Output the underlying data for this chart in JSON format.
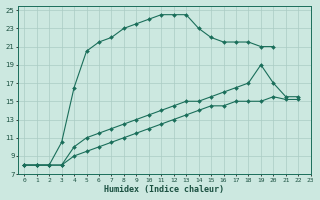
{
  "xlabel": "Humidex (Indice chaleur)",
  "bg_color": "#cce8e0",
  "grid_color": "#aaccc4",
  "line_color": "#1a6e5a",
  "xlim": [
    -0.5,
    23
  ],
  "ylim": [
    7,
    25.5
  ],
  "xticks": [
    0,
    1,
    2,
    3,
    4,
    5,
    6,
    7,
    8,
    9,
    10,
    11,
    12,
    13,
    14,
    15,
    16,
    17,
    18,
    19,
    20,
    21,
    22,
    23
  ],
  "yticks": [
    7,
    9,
    11,
    13,
    15,
    17,
    19,
    21,
    23,
    25
  ],
  "series1_x": [
    0,
    1,
    2,
    3,
    4,
    5,
    6,
    7,
    8,
    9,
    10,
    11,
    12,
    13,
    14,
    15,
    16,
    17,
    18,
    19,
    20
  ],
  "series1_y": [
    8,
    8,
    8,
    10.5,
    16.5,
    20.5,
    21.5,
    22,
    23,
    23.5,
    24,
    24.5,
    24.5,
    24.5,
    23,
    22,
    21.5,
    21.5,
    21.5,
    21,
    21
  ],
  "series2_x": [
    0,
    1,
    2,
    3,
    4,
    5,
    6,
    7,
    8,
    9,
    10,
    11,
    12,
    13,
    14,
    15,
    16,
    17,
    18,
    19,
    20,
    21,
    22
  ],
  "series2_y": [
    8,
    8,
    8,
    8,
    10,
    11,
    11.5,
    12,
    12.5,
    13,
    13.5,
    14,
    14.5,
    15,
    15,
    15.5,
    16,
    16.5,
    17,
    19,
    17,
    15.5,
    15.5
  ],
  "series3_x": [
    0,
    1,
    2,
    3,
    4,
    5,
    6,
    7,
    8,
    9,
    10,
    11,
    12,
    13,
    14,
    15,
    16,
    17,
    18,
    19,
    20,
    21,
    22
  ],
  "series3_y": [
    8,
    8,
    8,
    8,
    9,
    9.5,
    10,
    10.5,
    11,
    11.5,
    12,
    12.5,
    13,
    13.5,
    14,
    14.5,
    14.5,
    15,
    15,
    15,
    15.5,
    15.2,
    15.2
  ]
}
